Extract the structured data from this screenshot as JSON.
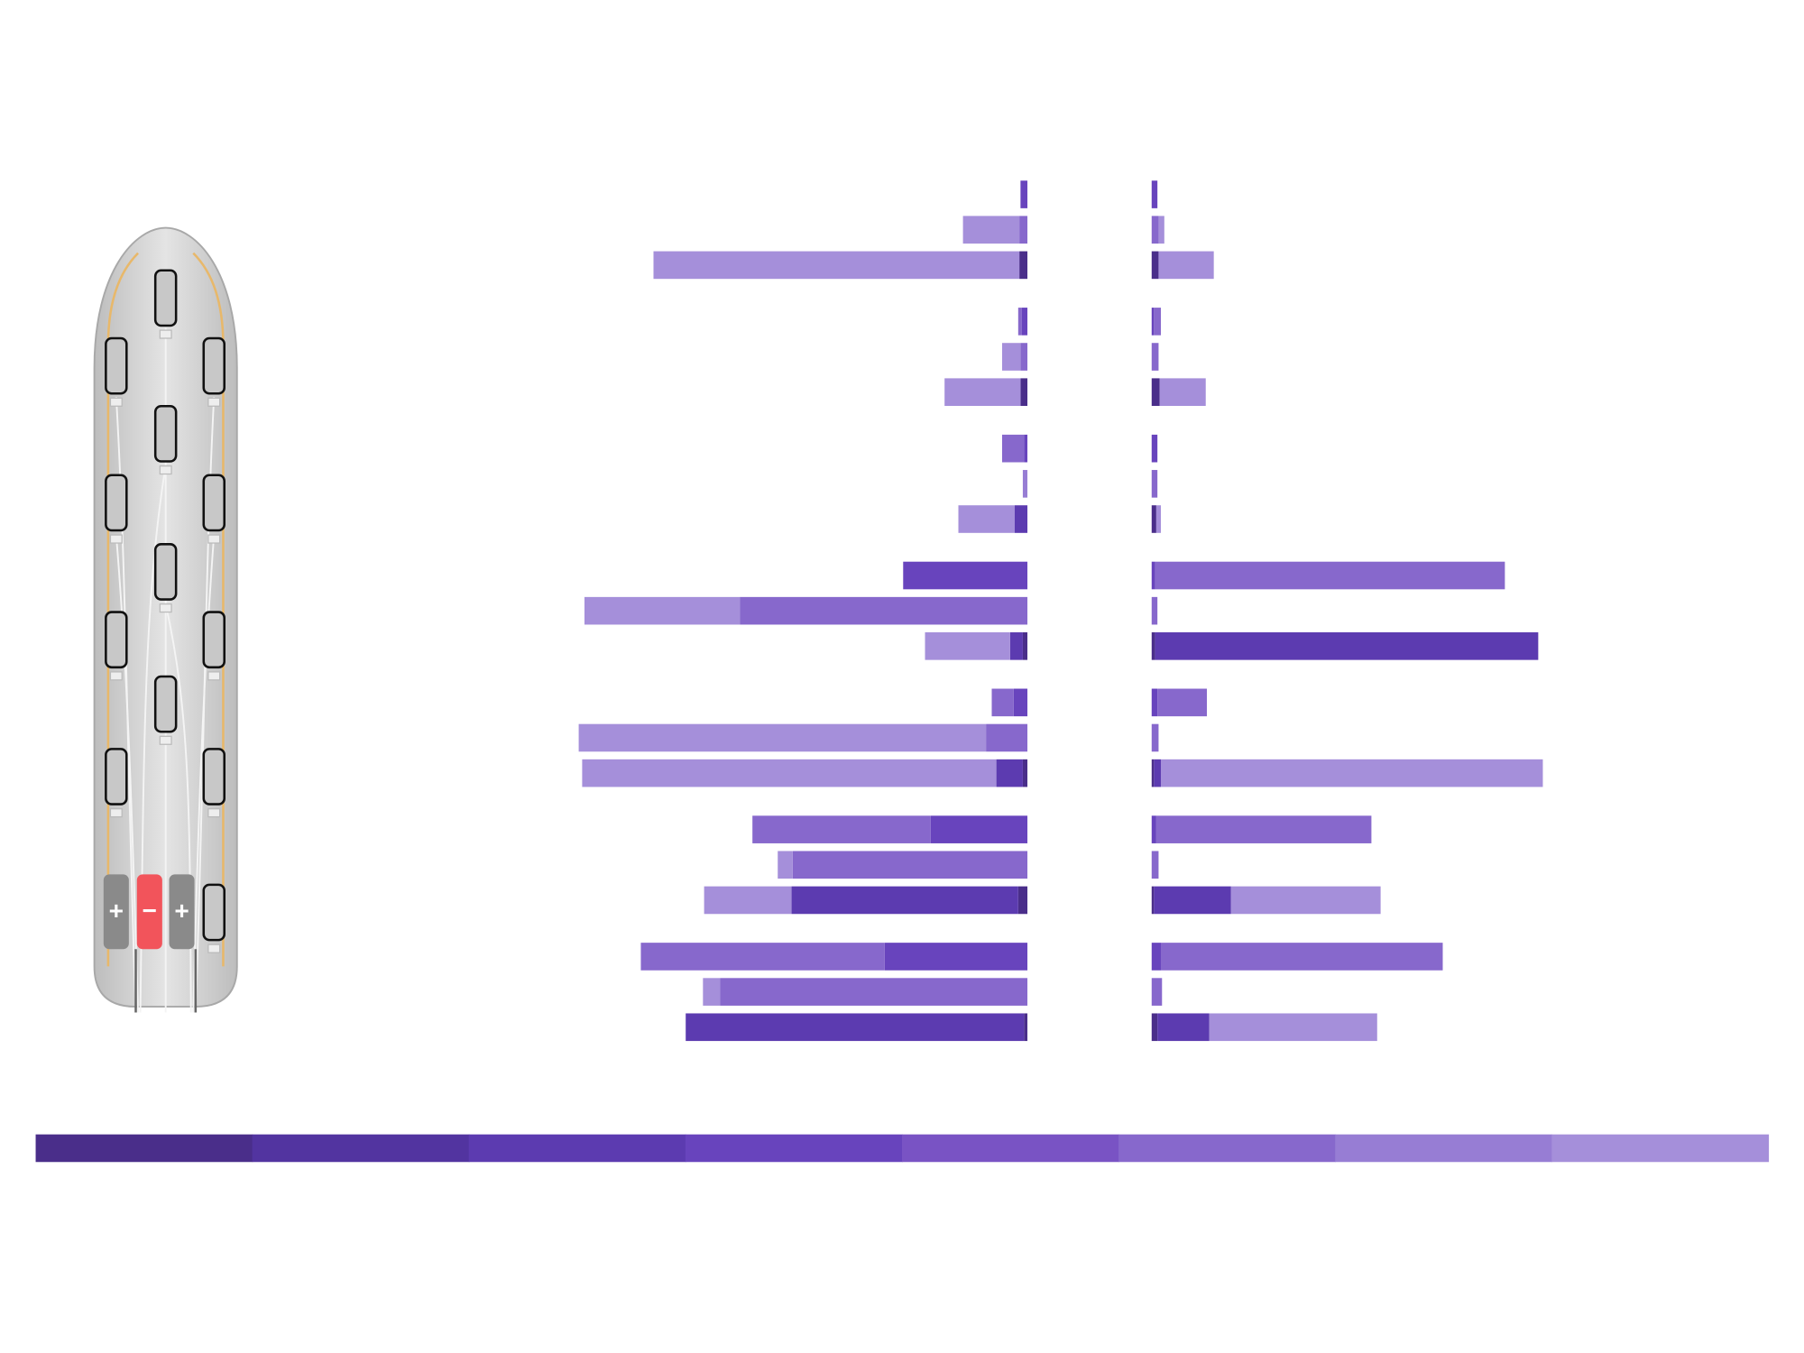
{
  "diagram": {
    "contacts": [
      "+",
      "−",
      "+"
    ]
  },
  "chart_data": {
    "type": "diverging-stacked-bar",
    "xlim": [
      0,
      400
    ],
    "colorbar": [
      "#4a2e8a",
      "#5234a0",
      "#5c3bb0",
      "#6844bd",
      "#7953c4",
      "#8768cc",
      "#977dd4",
      "#a58fda"
    ],
    "rows": [
      {
        "left": [
          {
            "value": 6,
            "color": "#6844bd"
          }
        ],
        "right": [
          {
            "value": 5,
            "color": "#6844bd"
          }
        ]
      },
      {
        "left": [
          {
            "value": 7,
            "color": "#8768cc"
          },
          {
            "value": 49,
            "color": "#a58fda"
          }
        ],
        "right": [
          {
            "value": 6,
            "color": "#8768cc"
          },
          {
            "value": 5,
            "color": "#a58fda"
          }
        ]
      },
      {
        "left": [
          {
            "value": 7,
            "color": "#4a2e8a"
          },
          {
            "value": 318,
            "color": "#a58fda"
          }
        ],
        "right": [
          {
            "value": 6,
            "color": "#4a2e8a"
          },
          {
            "value": 48,
            "color": "#a58fda"
          }
        ]
      },
      {
        "left": [
          {
            "value": 5,
            "color": "#6844bd"
          },
          {
            "value": 3,
            "color": "#8768cc"
          }
        ],
        "right": [
          {
            "value": 2,
            "color": "#6844bd"
          },
          {
            "value": 6,
            "color": "#8768cc"
          }
        ]
      },
      {
        "left": [
          {
            "value": 6,
            "color": "#8768cc"
          },
          {
            "value": 16,
            "color": "#a58fda"
          }
        ],
        "right": [
          {
            "value": 6,
            "color": "#8768cc"
          }
        ]
      },
      {
        "left": [
          {
            "value": 6,
            "color": "#4a2e8a"
          },
          {
            "value": 66,
            "color": "#a58fda"
          }
        ],
        "right": [
          {
            "value": 7,
            "color": "#4a2e8a"
          },
          {
            "value": 40,
            "color": "#a58fda"
          }
        ]
      },
      {
        "left": [
          {
            "value": 3,
            "color": "#6844bd"
          },
          {
            "value": 19,
            "color": "#8768cc"
          }
        ],
        "right": [
          {
            "value": 5,
            "color": "#6844bd"
          }
        ]
      },
      {
        "left": [
          {
            "value": 4,
            "color": "#977dd4"
          }
        ],
        "right": [
          {
            "value": 5,
            "color": "#8768cc"
          }
        ]
      },
      {
        "left": [
          {
            "value": 11,
            "color": "#5c3bb0"
          },
          {
            "value": 49,
            "color": "#a58fda"
          }
        ],
        "right": [
          {
            "value": 4,
            "color": "#4a2e8a"
          },
          {
            "value": 4,
            "color": "#a58fda"
          }
        ]
      },
      {
        "left": [
          {
            "value": 108,
            "color": "#6844bd"
          }
        ],
        "right": [
          {
            "value": 3,
            "color": "#6844bd"
          },
          {
            "value": 304,
            "color": "#8768cc"
          }
        ]
      },
      {
        "left": [
          {
            "value": 250,
            "color": "#8768cc"
          },
          {
            "value": 135,
            "color": "#a58fda"
          }
        ],
        "right": [
          {
            "value": 5,
            "color": "#8768cc"
          }
        ]
      },
      {
        "left": [
          {
            "value": 4,
            "color": "#4a2e8a"
          },
          {
            "value": 11,
            "color": "#5c3bb0"
          },
          {
            "value": 74,
            "color": "#a58fda"
          }
        ],
        "right": [
          {
            "value": 3,
            "color": "#4a2e8a"
          },
          {
            "value": 333,
            "color": "#5c3bb0"
          }
        ]
      },
      {
        "left": [
          {
            "value": 12,
            "color": "#6844bd"
          },
          {
            "value": 19,
            "color": "#8768cc"
          }
        ],
        "right": [
          {
            "value": 5,
            "color": "#6844bd"
          },
          {
            "value": 43,
            "color": "#8768cc"
          }
        ]
      },
      {
        "left": [
          {
            "value": 36,
            "color": "#8768cc"
          },
          {
            "value": 354,
            "color": "#a58fda"
          }
        ],
        "right": [
          {
            "value": 6,
            "color": "#8768cc"
          }
        ]
      },
      {
        "left": [
          {
            "value": 4,
            "color": "#4a2e8a"
          },
          {
            "value": 23,
            "color": "#5c3bb0"
          },
          {
            "value": 360,
            "color": "#a58fda"
          }
        ],
        "right": [
          {
            "value": 2,
            "color": "#4a2e8a"
          },
          {
            "value": 6,
            "color": "#5c3bb0"
          },
          {
            "value": 332,
            "color": "#a58fda"
          }
        ]
      },
      {
        "left": [
          {
            "value": 84,
            "color": "#6844bd"
          },
          {
            "value": 155,
            "color": "#8768cc"
          }
        ],
        "right": [
          {
            "value": 4,
            "color": "#6844bd"
          },
          {
            "value": 187,
            "color": "#8768cc"
          }
        ]
      },
      {
        "left": [
          {
            "value": 204,
            "color": "#8768cc"
          },
          {
            "value": 13,
            "color": "#a58fda"
          }
        ],
        "right": [
          {
            "value": 6,
            "color": "#8768cc"
          }
        ]
      },
      {
        "left": [
          {
            "value": 8,
            "color": "#4a2e8a"
          },
          {
            "value": 197,
            "color": "#5c3bb0"
          },
          {
            "value": 76,
            "color": "#a58fda"
          }
        ],
        "right": [
          {
            "value": 2,
            "color": "#4a2e8a"
          },
          {
            "value": 67,
            "color": "#5c3bb0"
          },
          {
            "value": 130,
            "color": "#a58fda"
          }
        ]
      },
      {
        "left": [
          {
            "value": 124,
            "color": "#6844bd"
          },
          {
            "value": 212,
            "color": "#8768cc"
          }
        ],
        "right": [
          {
            "value": 8,
            "color": "#6844bd"
          },
          {
            "value": 245,
            "color": "#8768cc"
          }
        ]
      },
      {
        "left": [
          {
            "value": 267,
            "color": "#8768cc"
          },
          {
            "value": 15,
            "color": "#a58fda"
          }
        ],
        "right": [
          {
            "value": 9,
            "color": "#8768cc"
          }
        ]
      },
      {
        "left": [
          {
            "value": 3,
            "color": "#4a2e8a"
          },
          {
            "value": 294,
            "color": "#5c3bb0"
          }
        ],
        "right": [
          {
            "value": 5,
            "color": "#4a2e8a"
          },
          {
            "value": 45,
            "color": "#5c3bb0"
          },
          {
            "value": 146,
            "color": "#a58fda"
          }
        ]
      }
    ]
  }
}
